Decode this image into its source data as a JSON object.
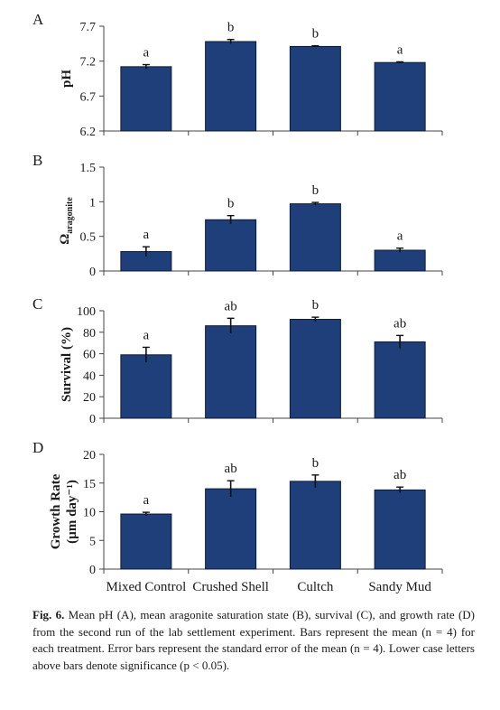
{
  "chart_data": [
    {
      "type": "bar",
      "panel_label": "A",
      "ylabel": "pH",
      "ylim": [
        6.2,
        7.7
      ],
      "yticks": [
        6.2,
        6.7,
        7.2,
        7.7
      ],
      "ytick_labels": [
        "6.2",
        "6.7",
        "7.2",
        "7.7"
      ],
      "categories": [
        "Mixed Control",
        "Crushed Shell",
        "Cultch",
        "Sandy Mud"
      ],
      "values": [
        7.12,
        7.48,
        7.41,
        7.18
      ],
      "errors": [
        0.03,
        0.03,
        0.01,
        0.01
      ],
      "significance": [
        "a",
        "b",
        "b",
        "a"
      ],
      "bar_color": "#1f3f7a"
    },
    {
      "type": "bar",
      "panel_label": "B",
      "ylabel": "Ωaragonite",
      "ylim": [
        0,
        1.5
      ],
      "yticks": [
        0,
        0.5,
        1,
        1.5
      ],
      "ytick_labels": [
        "0",
        "0.5",
        "1",
        "1.5"
      ],
      "categories": [
        "Mixed Control",
        "Crushed Shell",
        "Cultch",
        "Sandy Mud"
      ],
      "values": [
        0.28,
        0.74,
        0.97,
        0.3
      ],
      "errors": [
        0.07,
        0.06,
        0.02,
        0.03
      ],
      "significance": [
        "a",
        "b",
        "b",
        "a"
      ],
      "bar_color": "#1f3f7a"
    },
    {
      "type": "bar",
      "panel_label": "C",
      "ylabel": "Survival (%)",
      "ylim": [
        0,
        100
      ],
      "yticks": [
        0,
        20,
        40,
        60,
        80,
        100
      ],
      "ytick_labels": [
        "0",
        "20",
        "40",
        "60",
        "80",
        "100"
      ],
      "categories": [
        "Mixed Control",
        "Crushed Shell",
        "Cultch",
        "Sandy Mud"
      ],
      "values": [
        59,
        86,
        92,
        71
      ],
      "errors": [
        7,
        7,
        2,
        6
      ],
      "significance": [
        "a",
        "ab",
        "b",
        "ab"
      ],
      "bar_color": "#1f3f7a"
    },
    {
      "type": "bar",
      "panel_label": "D",
      "ylabel": "Growth Rate",
      "ylabel2": "(µm day⁻¹)",
      "ylim": [
        0,
        20
      ],
      "yticks": [
        0,
        5,
        10,
        15,
        20
      ],
      "ytick_labels": [
        "0",
        "5",
        "10",
        "15",
        "20"
      ],
      "categories": [
        "Mixed Control",
        "Crushed Shell",
        "Cultch",
        "Sandy Mud"
      ],
      "values": [
        9.6,
        14.0,
        15.3,
        13.8
      ],
      "errors": [
        0.3,
        1.4,
        1.1,
        0.5
      ],
      "significance": [
        "a",
        "ab",
        "b",
        "ab"
      ],
      "bar_color": "#1f3f7a"
    }
  ],
  "caption": {
    "label": "Fig. 6.",
    "text": "Mean pH (A), mean aragonite saturation state (B), survival (C), and growth rate (D) from the second run of the lab settlement experiment. Bars represent the mean (n = 4) for each treatment. Error bars represent the standard error of the mean (n = 4). Lower case letters above bars denote significance (p < 0.05)."
  }
}
